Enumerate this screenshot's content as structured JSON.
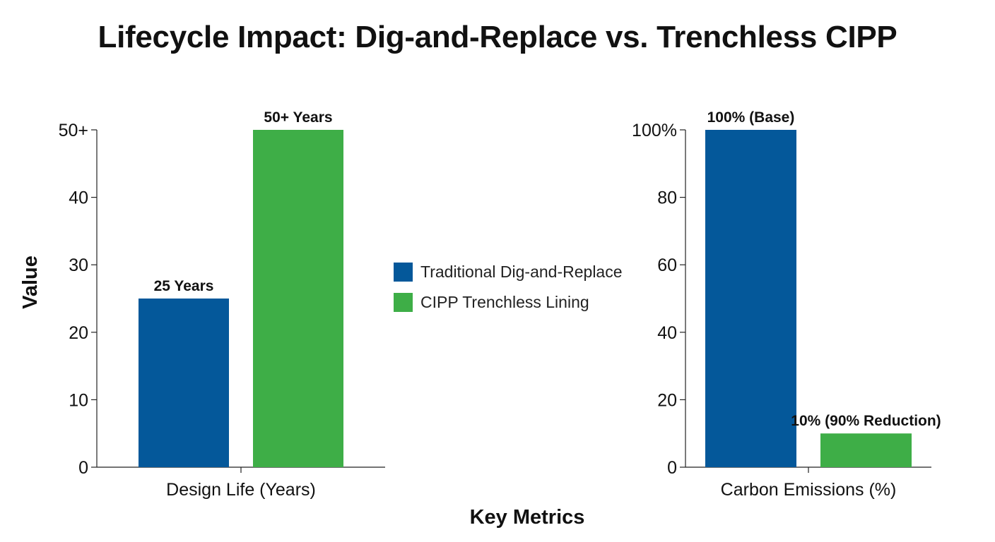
{
  "title": "Lifecycle Impact: Dig-and-Replace vs. Trenchless CIPP",
  "colors": {
    "traditional": "#04589A",
    "cipp": "#3EAE47"
  },
  "legend": [
    {
      "label": "Traditional Dig-and-Replace",
      "color": "#04589A"
    },
    {
      "label": "CIPP Trenchless Lining",
      "color": "#3EAE47"
    }
  ],
  "y_axis_title": "Value",
  "x_axis_title": "Key Metrics",
  "chart_data": [
    {
      "type": "bar",
      "category": "Design Life (Years)",
      "ylim": [
        0,
        50
      ],
      "ticks": [
        0,
        10,
        20,
        30,
        40,
        50
      ],
      "tick_labels": [
        "0",
        "10",
        "20",
        "30",
        "40",
        "50+"
      ],
      "series": [
        {
          "name": "Traditional Dig-and-Replace",
          "value": 25,
          "label": "25 Years"
        },
        {
          "name": "CIPP Trenchless Lining",
          "value": 50,
          "label": "50+ Years"
        }
      ]
    },
    {
      "type": "bar",
      "category": "Carbon Emissions (%)",
      "ylim": [
        0,
        100
      ],
      "ticks": [
        0,
        20,
        40,
        60,
        80,
        100
      ],
      "tick_labels": [
        "0",
        "20",
        "40",
        "60",
        "80",
        "100%"
      ],
      "series": [
        {
          "name": "Traditional Dig-and-Replace",
          "value": 100,
          "label": "100% (Base)"
        },
        {
          "name": "CIPP Trenchless Lining",
          "value": 10,
          "label": "10% (90% Reduction)"
        }
      ]
    }
  ]
}
